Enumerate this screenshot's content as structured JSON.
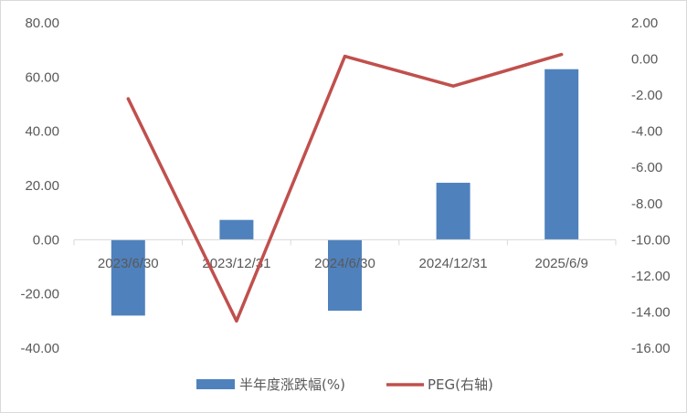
{
  "chart_data": {
    "type": "bar+line",
    "categories": [
      "2023/6/30",
      "2023/12/31",
      "2024/6/30",
      "2024/12/31",
      "2025/6/9"
    ],
    "series": [
      {
        "name": "半年度涨跌幅(%)",
        "type": "bar",
        "axis": "left",
        "color": "#4f81bd",
        "values": [
          -28.0,
          7.3,
          -26.2,
          21.0,
          62.9
        ]
      },
      {
        "name": "PEG(右轴)",
        "type": "line",
        "axis": "right",
        "color": "#c0504d",
        "values": [
          -2.2,
          -14.5,
          0.15,
          -1.5,
          0.25
        ]
      }
    ],
    "y_left": {
      "ylim": [
        -40,
        80
      ],
      "ticks": [
        "80.00",
        "60.00",
        "40.00",
        "20.00",
        "0.00",
        "-20.00",
        "-40.00"
      ]
    },
    "y_right": {
      "ylim": [
        -16,
        2
      ],
      "ticks": [
        "2.00",
        "0.00",
        "-2.00",
        "-4.00",
        "-6.00",
        "-8.00",
        "-10.00",
        "-12.00",
        "-14.00",
        "-16.00"
      ]
    },
    "grid": false,
    "legend_position": "bottom"
  }
}
